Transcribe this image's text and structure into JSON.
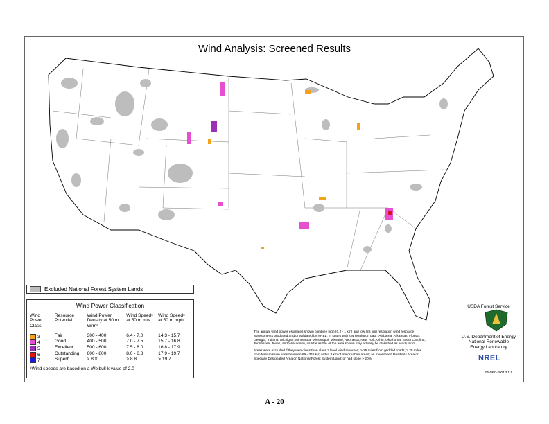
{
  "header": {
    "title": "Wind Analysis:  Screened Results"
  },
  "excluded_legend": {
    "label": "Excluded National Forest System Lands"
  },
  "classification": {
    "title": "Wind Power Classification",
    "columns": [
      "Wind Power Class",
      "Resource Potential",
      "Wind Power Density at 50 m W/m²",
      "Wind Speedᵃ at 50 m m/s",
      "Wind Speedᵃ at 50 m mph"
    ],
    "rows": [
      {
        "color": "#f5a21b",
        "cells": [
          "3",
          "Fair",
          "300 - 400",
          "6.4 - 7.0",
          "14.3 - 15.7"
        ]
      },
      {
        "color": "#e64fd0",
        "cells": [
          "4",
          "Good",
          "400 - 500",
          "7.0 - 7.5",
          "15.7 - 16.8"
        ]
      },
      {
        "color": "#9b2fb5",
        "cells": [
          "5",
          "Excellent",
          "500 - 600",
          "7.5 - 8.0",
          "16.8 - 17.9"
        ]
      },
      {
        "color": "#d8151d",
        "cells": [
          "6",
          "Outstanding",
          "600 - 800",
          "8.0 - 8.8",
          "17.9 - 19.7"
        ]
      },
      {
        "color": "#1a1ad8",
        "cells": [
          "7",
          "Superb",
          "> 800",
          "> 8.8",
          "> 19.7"
        ]
      }
    ],
    "footnote": "ᵃWind speeds are based on a Weibull k value of 2.0"
  },
  "notes": [
    "The annual wind power estimates shown combine high (0.2 - 1 km) and low (25 km) resolution wind resource assessments produced and/or validated by NREL.  In states with low resolution data (Alabama, Arkansas,  Florida, Georgia, Indiana, Michigan, Minnesota, Mississippi, Missouri, Nebraska,  New York, Ohio, Oklahoma, South Carolina, Tennessee, Texas, and Wisconsin), as little as 5% of the area shown may actually be classified as windy land.",
    "Areas were excluded if they were: less than class 3 level wind resource; > 25 miles from gridded roads; > 25 miles from transmission lines between 69 - 345 kV; within 3 km of major urban areas; an Inventoried Roadless Area or Specially Designated Area on National Forest System Land; or had slope > 20%."
  ],
  "agencies": {
    "usda": "USDA Forest Service",
    "doe": [
      "U.S. Department of Energy",
      "National Renewable",
      "Energy Laboratory"
    ],
    "nrel": "NREL",
    "date": "06-DEC-2004 3.1.1"
  },
  "footer": {
    "page_number": "A - 20"
  }
}
